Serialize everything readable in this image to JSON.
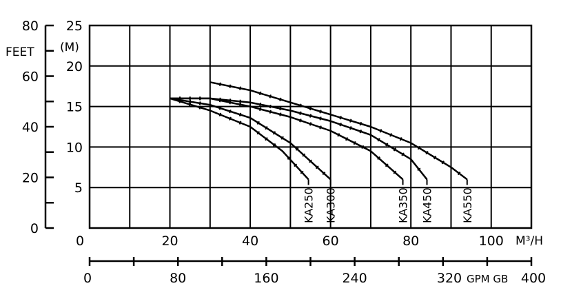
{
  "chart_data": {
    "type": "line",
    "x_unit": "M³/H",
    "y_unit": "(M)",
    "feet_unit": "FEET",
    "gpm_unit": "GPM GB",
    "xlim": [
      0,
      110
    ],
    "ylim": [
      0,
      25
    ],
    "grid": true,
    "x_ticks": [
      "0",
      "20",
      "40",
      "60",
      "80",
      "100"
    ],
    "y_ticks": [
      "5",
      "10",
      "15",
      "20",
      "25"
    ],
    "feet_ticks": [
      "0",
      "20",
      "40",
      "60",
      "80"
    ],
    "gpm_ticks": [
      "0",
      "80",
      "160",
      "240",
      "320",
      "400"
    ],
    "series": [
      {
        "name": "KA250",
        "x": [
          20,
          30,
          40,
          48,
          54.5
        ],
        "y": [
          16,
          14.5,
          12.5,
          9.5,
          6
        ]
      },
      {
        "name": "KA300",
        "x": [
          20,
          30,
          40,
          50,
          60
        ],
        "y": [
          16,
          15.2,
          13.6,
          10.5,
          6
        ]
      },
      {
        "name": "KA350",
        "x": [
          20,
          30,
          40,
          50,
          60,
          70,
          78
        ],
        "y": [
          16,
          16,
          15,
          13.7,
          12,
          9.5,
          6
        ]
      },
      {
        "name": "KA450",
        "x": [
          20,
          30,
          40,
          50,
          60,
          70,
          80,
          84
        ],
        "y": [
          16,
          16,
          15.5,
          14.5,
          13.2,
          11.5,
          8.5,
          6
        ]
      },
      {
        "name": "KA550",
        "x": [
          30,
          40,
          50,
          60,
          70,
          80,
          90,
          94
        ],
        "y": [
          18,
          17,
          15.5,
          14,
          12.5,
          10.5,
          7.5,
          6
        ]
      }
    ]
  }
}
